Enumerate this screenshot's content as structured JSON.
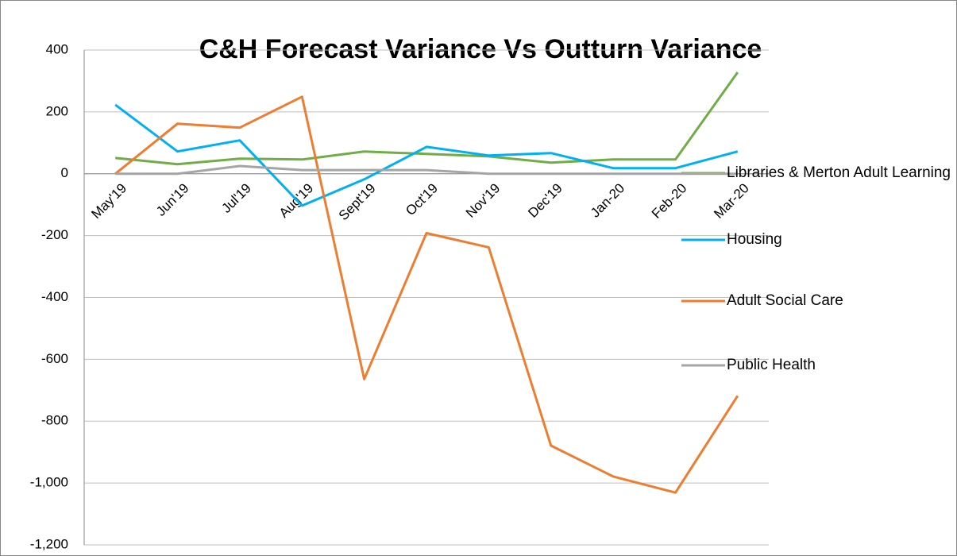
{
  "chart_data": {
    "type": "line",
    "title": "C&H Forecast Variance Vs Outturn Variance",
    "categories": [
      "May'19",
      "Jun'19",
      "Jul'19",
      "Aug'19",
      "Sept'19",
      "Oct'19",
      "Nov'19",
      "Dec'19",
      "Jan-20",
      "Feb-20",
      "Mar-20"
    ],
    "series": [
      {
        "name": "Libraries & Merton Adult Learning",
        "color": "#70ad47",
        "values": [
          51,
          31,
          49,
          46,
          72,
          64,
          56,
          36,
          46,
          46,
          328
        ]
      },
      {
        "name": "Housing",
        "color": "#00b0f0",
        "values": [
          223,
          72,
          108,
          -103,
          -18,
          87,
          59,
          67,
          18,
          18,
          72
        ]
      },
      {
        "name": "Adult Social Care",
        "color": "#ed7d31",
        "values": [
          0,
          162,
          149,
          249,
          -664,
          -192,
          -238,
          -879,
          -979,
          -1031,
          -718
        ]
      },
      {
        "name": "Public Health",
        "color": "#a5a5a5",
        "values": [
          0,
          0,
          25,
          12,
          12,
          12,
          0,
          0,
          0,
          0,
          0
        ]
      }
    ],
    "ylim": [
      -1200,
      400
    ],
    "yticks": [
      {
        "value": -1200,
        "label": "-1,200"
      },
      {
        "value": -1000,
        "label": "-1,000"
      },
      -800,
      -600,
      -400,
      -200,
      0,
      200,
      400
    ],
    "grid": true,
    "legend": "right"
  }
}
